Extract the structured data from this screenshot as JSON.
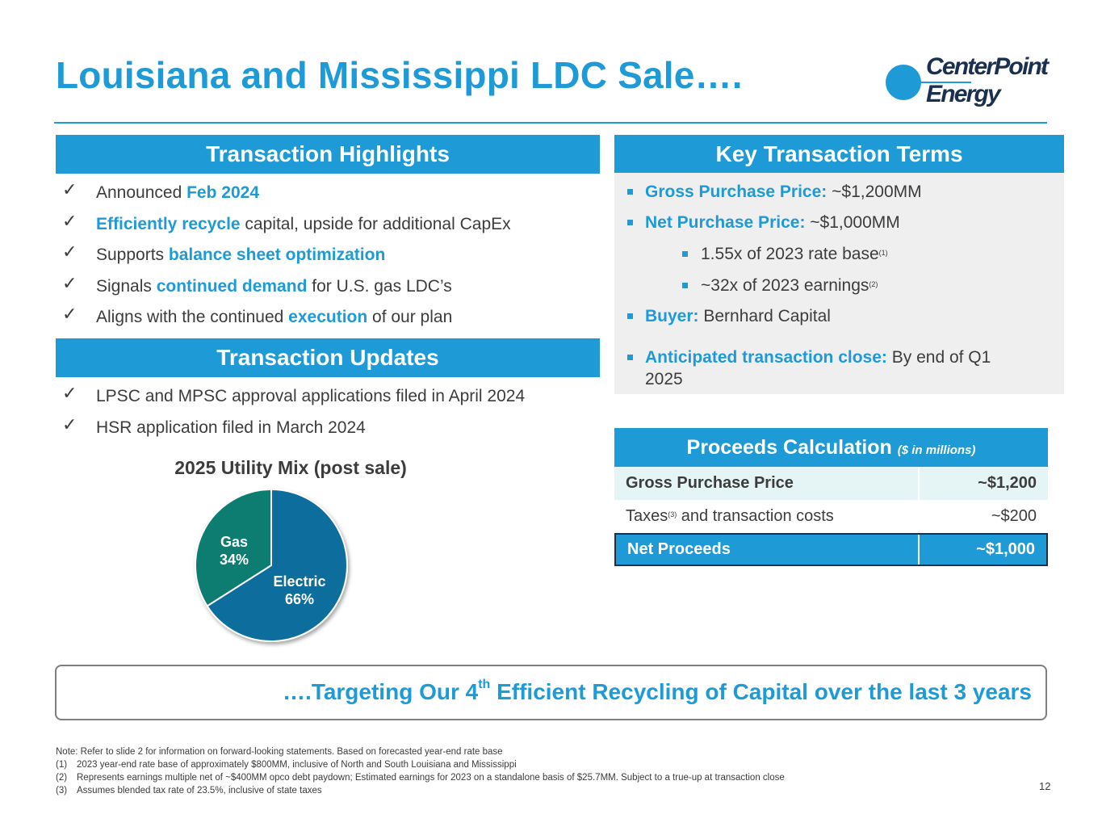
{
  "title": "Louisiana and Mississippi LDC Sale….",
  "logo": {
    "line1": "CenterPoint",
    "line2": "Energy",
    "reg": "®"
  },
  "highlights": {
    "header": "Transaction Highlights",
    "items": [
      {
        "pre": "Announced ",
        "hl": "Feb 2024",
        "post": ""
      },
      {
        "pre": "",
        "hl": "Efficiently recycle",
        "post": " capital, upside for additional CapEx"
      },
      {
        "pre": "Supports ",
        "hl": "balance sheet optimization",
        "post": ""
      },
      {
        "pre": "Signals ",
        "hl": "continued demand",
        "post": " for U.S. gas LDC’s"
      },
      {
        "pre": "Aligns with the continued ",
        "hl": "execution",
        "post": " of our plan"
      }
    ]
  },
  "updates": {
    "header": "Transaction Updates",
    "items": [
      "LPSC and MPSC approval applications filed in April 2024",
      "HSR application filed in March 2024"
    ]
  },
  "terms": {
    "header": "Key Transaction Terms",
    "gross": {
      "label": "Gross Purchase Price",
      "colon": ":",
      "value": " ~$1,200MM"
    },
    "net": {
      "label": "Net Purchase Price",
      "colon": ":",
      "value": " ~$1,000MM"
    },
    "sub1": {
      "text": "1.55x of 2023 rate base",
      "fn": "(1)"
    },
    "sub2": {
      "text": "~32x of 2023 earnings",
      "fn": "(2)"
    },
    "buyer": {
      "label": "Buyer:",
      "value": " Bernhard Capital"
    },
    "close": {
      "label": "Anticipated transaction close",
      "colon": ":",
      "value": " By end of Q1",
      "value2": "2025"
    }
  },
  "chart_data": {
    "type": "pie",
    "title": "2025 Utility Mix (post sale)",
    "slices": [
      {
        "name": "Electric",
        "value": 66,
        "label": "66%",
        "color": "#0e6e9e"
      },
      {
        "name": "Gas",
        "value": 34,
        "label": "34%",
        "color": "#0b7d72"
      }
    ]
  },
  "proceeds": {
    "header": "Proceeds Calculation",
    "header_note": "($ in millions)",
    "rows": [
      {
        "label": "Gross Purchase Price",
        "fn": "",
        "label_post": "",
        "value": "~$1,200"
      },
      {
        "label": "Taxes",
        "fn": "(3)",
        "label_post": " and transaction costs",
        "value": "~$200"
      },
      {
        "label": "Net Proceeds",
        "fn": "",
        "label_post": "",
        "value": "~$1,000"
      }
    ]
  },
  "banner": {
    "dots": "….",
    "pre": "Targeting Our 4",
    "sup": "th",
    "post": " Efficient Recycling of Capital over the last 3 years"
  },
  "notes": {
    "intro": "Note: Refer to slide 2 for information on forward-looking statements. Based on forecasted year-end rate base",
    "items": [
      {
        "num": "(1)",
        "text": "2023 year-end rate base of approximately $800MM, inclusive of North and South Louisiana and Mississippi"
      },
      {
        "num": "(2)",
        "text": "Represents earnings multiple net of ~$400MM opco debt paydown; Estimated earnings for 2023 on a standalone basis of $25.7MM. Subject to a true-up at transaction close"
      },
      {
        "num": "(3)",
        "text": "Assumes blended tax rate of 23.5%, inclusive of state taxes"
      }
    ]
  },
  "page_number": "12",
  "colors": {
    "accent": "#1e9ad6",
    "navy": "#1b2f4f",
    "text": "#3c3c3c"
  }
}
